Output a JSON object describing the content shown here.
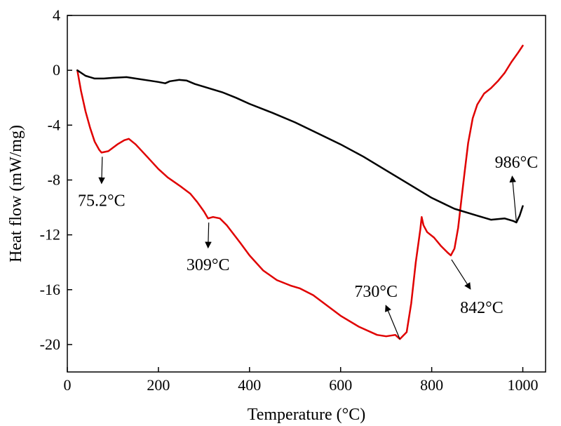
{
  "chart_data": {
    "type": "line",
    "xlabel": "Temperature (°C)",
    "ylabel": "Heat flow (mW/mg)",
    "xlim": [
      0,
      1050
    ],
    "ylim": [
      -22,
      4
    ],
    "x_ticks": [
      0,
      200,
      400,
      600,
      800,
      1000
    ],
    "y_ticks": [
      4,
      0,
      -4,
      -8,
      -12,
      -16,
      -20
    ],
    "x_tick_labels": [
      "0",
      "200",
      "400",
      "600",
      "800",
      "1000"
    ],
    "y_tick_labels": [
      "4",
      "0",
      "-4",
      "-8",
      "-12",
      "-16",
      "-20"
    ],
    "grid": false,
    "series": [
      {
        "color": "#e00000",
        "points": [
          [
            22,
            0.0
          ],
          [
            30,
            -1.5
          ],
          [
            40,
            -3.0
          ],
          [
            50,
            -4.2
          ],
          [
            60,
            -5.2
          ],
          [
            70,
            -5.8
          ],
          [
            75.2,
            -6.0
          ],
          [
            90,
            -5.9
          ],
          [
            110,
            -5.4
          ],
          [
            125,
            -5.1
          ],
          [
            135,
            -5.0
          ],
          [
            150,
            -5.4
          ],
          [
            175,
            -6.3
          ],
          [
            200,
            -7.2
          ],
          [
            220,
            -7.8
          ],
          [
            250,
            -8.5
          ],
          [
            270,
            -9.0
          ],
          [
            285,
            -9.6
          ],
          [
            300,
            -10.3
          ],
          [
            309,
            -10.8
          ],
          [
            320,
            -10.7
          ],
          [
            335,
            -10.8
          ],
          [
            350,
            -11.3
          ],
          [
            380,
            -12.6
          ],
          [
            400,
            -13.5
          ],
          [
            430,
            -14.6
          ],
          [
            460,
            -15.3
          ],
          [
            490,
            -15.7
          ],
          [
            510,
            -15.9
          ],
          [
            540,
            -16.4
          ],
          [
            560,
            -16.9
          ],
          [
            600,
            -17.9
          ],
          [
            640,
            -18.7
          ],
          [
            680,
            -19.3
          ],
          [
            700,
            -19.4
          ],
          [
            720,
            -19.3
          ],
          [
            730,
            -19.6
          ],
          [
            745,
            -19.1
          ],
          [
            755,
            -17.0
          ],
          [
            765,
            -14.0
          ],
          [
            775,
            -11.6
          ],
          [
            778,
            -10.7
          ],
          [
            782,
            -11.3
          ],
          [
            790,
            -11.8
          ],
          [
            805,
            -12.2
          ],
          [
            820,
            -12.8
          ],
          [
            835,
            -13.3
          ],
          [
            842,
            -13.5
          ],
          [
            850,
            -13.0
          ],
          [
            858,
            -11.5
          ],
          [
            865,
            -9.5
          ],
          [
            872,
            -7.5
          ],
          [
            880,
            -5.3
          ],
          [
            890,
            -3.5
          ],
          [
            900,
            -2.5
          ],
          [
            915,
            -1.7
          ],
          [
            930,
            -1.3
          ],
          [
            945,
            -0.8
          ],
          [
            960,
            -0.2
          ],
          [
            975,
            0.6
          ],
          [
            990,
            1.3
          ],
          [
            1000,
            1.8
          ]
        ]
      },
      {
        "color": "#000000",
        "points": [
          [
            22,
            0.0
          ],
          [
            40,
            -0.4
          ],
          [
            60,
            -0.6
          ],
          [
            80,
            -0.6
          ],
          [
            100,
            -0.55
          ],
          [
            130,
            -0.5
          ],
          [
            150,
            -0.6
          ],
          [
            180,
            -0.75
          ],
          [
            200,
            -0.85
          ],
          [
            215,
            -0.95
          ],
          [
            225,
            -0.8
          ],
          [
            245,
            -0.7
          ],
          [
            262,
            -0.75
          ],
          [
            280,
            -1.0
          ],
          [
            310,
            -1.3
          ],
          [
            340,
            -1.6
          ],
          [
            370,
            -2.0
          ],
          [
            400,
            -2.45
          ],
          [
            450,
            -3.1
          ],
          [
            500,
            -3.8
          ],
          [
            550,
            -4.6
          ],
          [
            600,
            -5.4
          ],
          [
            650,
            -6.3
          ],
          [
            700,
            -7.3
          ],
          [
            750,
            -8.3
          ],
          [
            800,
            -9.3
          ],
          [
            850,
            -10.1
          ],
          [
            900,
            -10.6
          ],
          [
            930,
            -10.9
          ],
          [
            960,
            -10.8
          ],
          [
            980,
            -11.0
          ],
          [
            986,
            -11.1
          ],
          [
            993,
            -10.6
          ],
          [
            1000,
            -9.9
          ]
        ]
      }
    ],
    "annotations": [
      {
        "text": "75.2°C",
        "point": [
          75.2,
          -6.0
        ]
      },
      {
        "text": "309°C",
        "point": [
          309,
          -10.8
        ]
      },
      {
        "text": "730°C",
        "point": [
          730,
          -19.6
        ]
      },
      {
        "text": "842°C",
        "point": [
          842,
          -13.5
        ]
      },
      {
        "text": "986°C",
        "point": [
          986,
          -11.1
        ]
      }
    ]
  }
}
